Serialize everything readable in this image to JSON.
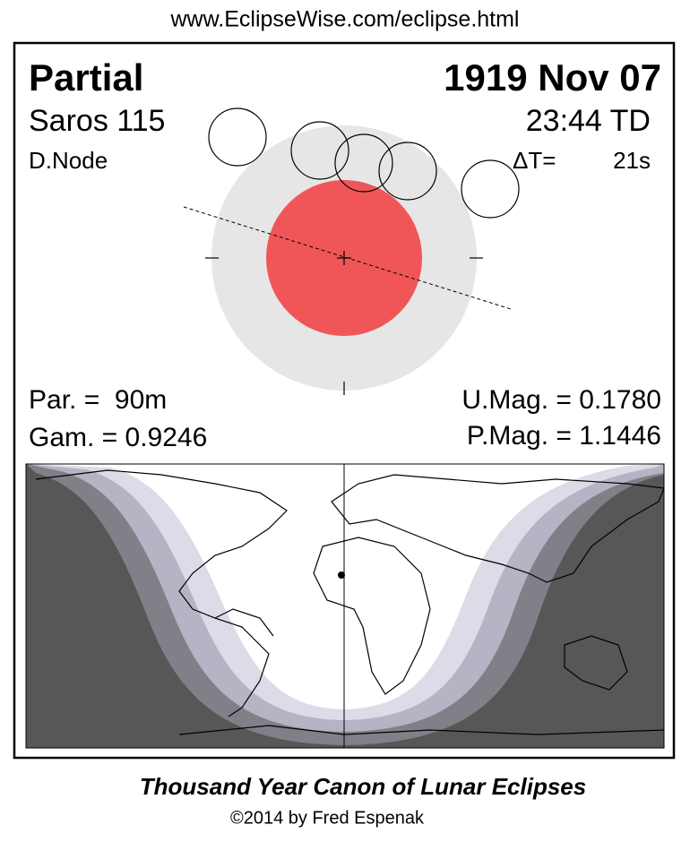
{
  "header": {
    "url": "www.EclipseWise.com/eclipse.html"
  },
  "panel": {
    "type": "Partial",
    "date": "1919 Nov 07",
    "saros": "Saros 115",
    "time": "23:44 TD",
    "node": "D.Node",
    "delta_t_label": "ΔT=",
    "delta_t_value": "21s",
    "duration": "Par. =  90m",
    "gamma": "Gam. = 0.9246",
    "umbral_mag": "U.Mag. = 0.1780",
    "penumbral_mag": "P.Mag. = 1.1446"
  },
  "footer": {
    "title": "Thousand Year Canon of Lunar Eclipses",
    "credit": "©2014 by Fred Espenak"
  }
}
